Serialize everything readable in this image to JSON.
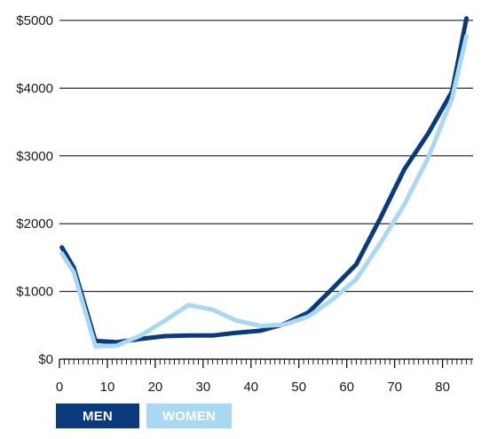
{
  "chart_data": {
    "type": "line",
    "title": "",
    "xlabel": "",
    "ylabel": "",
    "xlim": [
      0,
      86
    ],
    "ylim": [
      0,
      5000
    ],
    "grid": "horizontal",
    "x_ticks": [
      0,
      10,
      20,
      30,
      40,
      50,
      60,
      70,
      80
    ],
    "y_ticks": [
      0,
      1000,
      2000,
      3000,
      4000,
      5000
    ],
    "y_tick_labels": [
      "$0",
      "$1000",
      "$2000",
      "$3000",
      "$4000",
      "$5000"
    ],
    "x_tick_labels": [
      "0",
      "10",
      "20",
      "30",
      "40",
      "50",
      "60",
      "70",
      "80"
    ],
    "series": [
      {
        "name": "MEN",
        "color": "#0a3a7e",
        "points": [
          [
            0.5,
            1650
          ],
          [
            3,
            1350
          ],
          [
            7.5,
            270
          ],
          [
            12,
            250
          ],
          [
            17,
            300
          ],
          [
            22,
            340
          ],
          [
            27,
            350
          ],
          [
            32,
            350
          ],
          [
            37,
            390
          ],
          [
            42,
            420
          ],
          [
            47,
            520
          ],
          [
            52,
            690
          ],
          [
            57,
            1040
          ],
          [
            62,
            1400
          ],
          [
            67,
            2080
          ],
          [
            72,
            2800
          ],
          [
            77,
            3330
          ],
          [
            82,
            3950
          ],
          [
            85,
            5030
          ]
        ]
      },
      {
        "name": "WOMEN",
        "color": "#a9d8f5",
        "points": [
          [
            0.5,
            1560
          ],
          [
            3,
            1280
          ],
          [
            7.5,
            190
          ],
          [
            12,
            200
          ],
          [
            17,
            350
          ],
          [
            22,
            570
          ],
          [
            27,
            800
          ],
          [
            32,
            730
          ],
          [
            37,
            570
          ],
          [
            42,
            490
          ],
          [
            47,
            510
          ],
          [
            52,
            630
          ],
          [
            57,
            880
          ],
          [
            62,
            1180
          ],
          [
            67,
            1710
          ],
          [
            72,
            2280
          ],
          [
            77,
            2970
          ],
          [
            82,
            3850
          ],
          [
            85,
            4770
          ]
        ]
      }
    ],
    "legend": {
      "placement": "bottom-left",
      "items": [
        {
          "label": "MEN",
          "color": "#0a3a7e"
        },
        {
          "label": "WOMEN",
          "color": "#a9d8f5"
        }
      ]
    }
  }
}
